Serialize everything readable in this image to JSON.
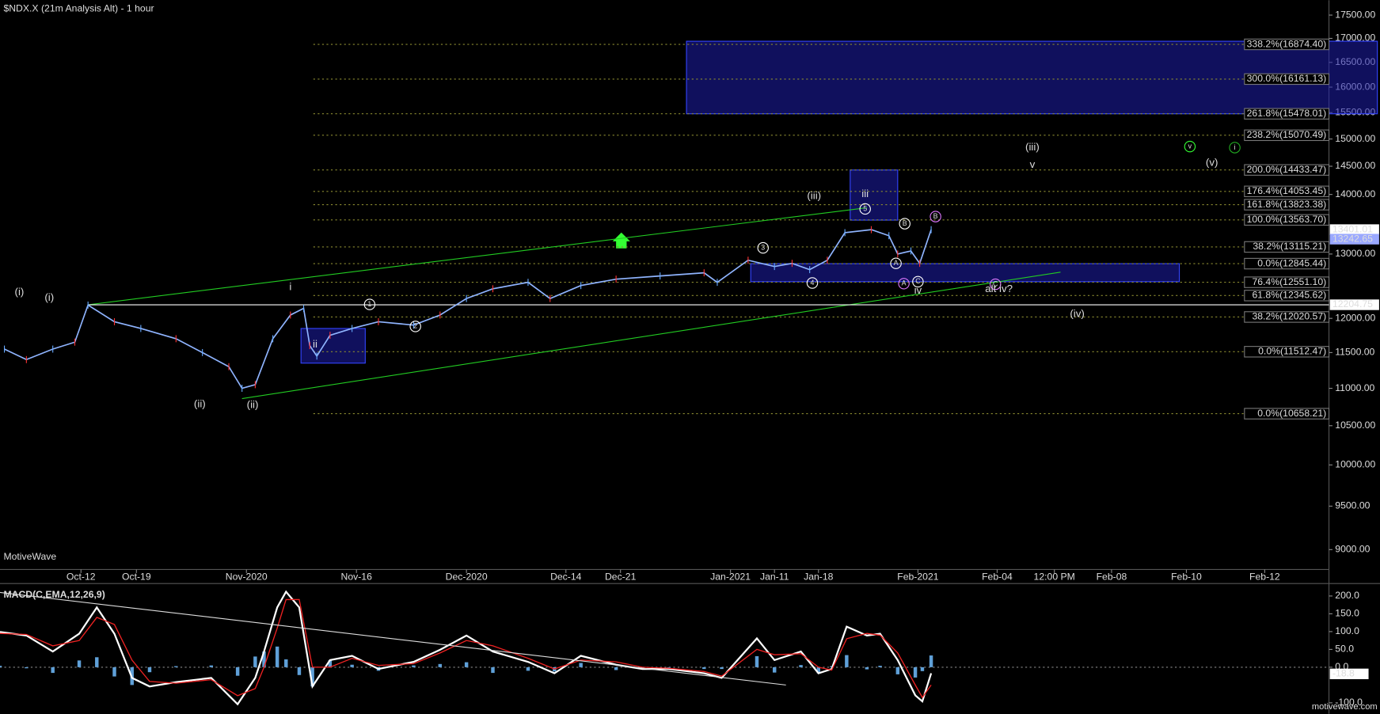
{
  "chart_data": [
    {
      "type": "line",
      "title": "$NDX.X (21m Analysis Alt) - 1 hour",
      "watermark": "MotiveWave",
      "log": true,
      "xlim": [
        0,
        151
      ],
      "ylim": [
        8780,
        17730
      ],
      "xticks": [
        {
          "value": 9.2,
          "label": "Oct-12"
        },
        {
          "value": 15.5,
          "label": "Oct-19"
        },
        {
          "value": 28,
          "label": "Nov-2020"
        },
        {
          "value": 40.5,
          "label": "Nov-16"
        },
        {
          "value": 53,
          "label": "Dec-2020"
        },
        {
          "value": 64.3,
          "label": "Dec-14"
        },
        {
          "value": 70.5,
          "label": "Dec-21"
        },
        {
          "value": 83,
          "label": "Jan-2021"
        },
        {
          "value": 88,
          "label": "Jan-11"
        },
        {
          "value": 93,
          "label": "Jan-18"
        },
        {
          "value": 104.3,
          "label": "Feb-2021"
        },
        {
          "value": 113.3,
          "label": "Feb-04"
        },
        {
          "value": 119.8,
          "label": "12:00 PM"
        },
        {
          "value": 126.3,
          "label": "Feb-08"
        },
        {
          "value": 134.8,
          "label": "Feb-10"
        },
        {
          "value": 143.7,
          "label": "Feb-12"
        }
      ],
      "yticks": [
        {
          "value": 17500,
          "label": "17500.00"
        },
        {
          "value": 17000,
          "label": "17000.00"
        },
        {
          "value": 16500,
          "label": "16500.00"
        },
        {
          "value": 16000,
          "label": "16000.00"
        },
        {
          "value": 15500,
          "label": "15500.00"
        },
        {
          "value": 15000,
          "label": "15000.00"
        },
        {
          "value": 14500,
          "label": "14500.00"
        },
        {
          "value": 14000,
          "label": "14000.00"
        },
        {
          "value": 13000,
          "label": "13000.00"
        },
        {
          "value": 12000,
          "label": "12000.00"
        },
        {
          "value": 11500,
          "label": "11500.00"
        },
        {
          "value": 11000,
          "label": "11000.00"
        },
        {
          "value": 10500,
          "label": "10500.00"
        },
        {
          "value": 10000,
          "label": "10000.00"
        },
        {
          "value": 9500,
          "label": "9500.00"
        },
        {
          "value": 9000,
          "label": "9000.00"
        }
      ],
      "series": [
        {
          "color": "#8fb4ff",
          "x": [
            0.5,
            3,
            6,
            8.5,
            10,
            13,
            16,
            20,
            23,
            26,
            27.5,
            29,
            31,
            33,
            34.5,
            35.2,
            36,
            37.5,
            40,
            43,
            47,
            50,
            53,
            56,
            60,
            62.5,
            66,
            70,
            75,
            80,
            81.5,
            85,
            88,
            90,
            92,
            94,
            96,
            99,
            101,
            102,
            103.5,
            104.5,
            105.8
          ],
          "values": [
            11550,
            11400,
            11550,
            11650,
            12200,
            11950,
            11850,
            11700,
            11500,
            11300,
            11000,
            11050,
            11700,
            12050,
            12150,
            11600,
            11450,
            11750,
            11850,
            11950,
            11900,
            12050,
            12300,
            12450,
            12550,
            12300,
            12500,
            12600,
            12650,
            12700,
            12550,
            12900,
            12800,
            12850,
            12750,
            12900,
            13350,
            13400,
            13300,
            13000,
            13050,
            12850,
            13400
          ]
        }
      ],
      "zones": [
        {
          "x": [
            78,
            156.5
          ],
          "y": [
            15478,
            16940
          ]
        },
        {
          "x": [
            96.6,
            102
          ],
          "y": [
            13560,
            14433
          ]
        },
        {
          "x": [
            85.3,
            134
          ],
          "y": [
            12560,
            12845
          ]
        },
        {
          "x": [
            34.2,
            41.5
          ],
          "y": [
            11350,
            11850
          ]
        }
      ],
      "trend_lines": [
        {
          "color": "#22cc22",
          "x": [
            10,
            98.5
          ],
          "y": [
            12204.75,
            13770
          ]
        },
        {
          "color": "#22cc22",
          "x": [
            27.5,
            120.5
          ],
          "y": [
            10860,
            12710
          ]
        },
        {
          "color": "#ffffff",
          "x": [
            10,
            151
          ],
          "y": [
            12204.75,
            12204.75
          ]
        }
      ],
      "fib_levels": [
        {
          "label": "338.2%(16874.40)",
          "value": 16874.4
        },
        {
          "label": "300.0%(16161.13)",
          "value": 16161.13
        },
        {
          "label": "261.8%(15478.01)",
          "value": 15478.01
        },
        {
          "label": "238.2%(15070.49)",
          "value": 15070.49
        },
        {
          "label": "200.0%(14433.47)",
          "value": 14433.47
        },
        {
          "label": "176.4%(14053.45)",
          "value": 14053.45
        },
        {
          "label": "161.8%(13823.38)",
          "value": 13823.38
        },
        {
          "label": "100.0%(13563.70)",
          "value": 13563.7
        },
        {
          "label": "38.2%(13115.21)",
          "value": 13115.21
        },
        {
          "label": "0.0%(12845.44)",
          "value": 12845.44
        },
        {
          "label": "76.4%(12551.10)",
          "value": 12551.1
        },
        {
          "label": "61.8%(12345.62)",
          "value": 12345.62
        },
        {
          "label": "38.2%(12020.57)",
          "value": 12020.57
        },
        {
          "label": "0.0%(11512.47)",
          "value": 11512.47
        },
        {
          "label": "0.0%(10658.21)",
          "value": 10658.21
        }
      ],
      "price_markers": [
        {
          "label": "13401.01",
          "value": 13401.01,
          "color": "#ffffff"
        },
        {
          "label": "13242.65",
          "value": 13242.65,
          "color": "#9aa8ff"
        },
        {
          "label": "12204.75",
          "value": 12204.75,
          "color": "#ffffff"
        }
      ],
      "annotations": [
        {
          "text": "(i)",
          "x": 2.2,
          "y": 12390,
          "color": "#ffffff"
        },
        {
          "text": "(i)",
          "x": 5.6,
          "y": 12310,
          "color": "#33ff33"
        },
        {
          "text": "(ii)",
          "x": 22.7,
          "y": 10780,
          "color": "#33ff33"
        },
        {
          "text": "(ii)",
          "x": 28.7,
          "y": 10770,
          "color": "#ffffff"
        },
        {
          "text": "i",
          "x": 33,
          "y": 12470,
          "color": "#ffffff"
        },
        {
          "text": "ii",
          "x": 35.8,
          "y": 11610,
          "color": "#ffffff"
        },
        {
          "text": "1",
          "x": 42,
          "y": 12210,
          "color": "#ffffff",
          "circle": true
        },
        {
          "text": "2",
          "x": 47.2,
          "y": 11880,
          "color": "#ffffff",
          "circle": true
        },
        {
          "text": "3",
          "x": 86.7,
          "y": 13100,
          "color": "#ffffff",
          "circle": true
        },
        {
          "text": "4",
          "x": 92.3,
          "y": 12540,
          "color": "#ffffff",
          "circle": true
        },
        {
          "text": "5",
          "x": 98.3,
          "y": 13750,
          "color": "#ffffff",
          "circle": true
        },
        {
          "text": "(iii)",
          "x": 92.5,
          "y": 13970,
          "color": "#33ff33"
        },
        {
          "text": "iii",
          "x": 98.3,
          "y": 14000,
          "color": "#ffffff"
        },
        {
          "text": "A",
          "x": 101.8,
          "y": 12850,
          "color": "#ffffff",
          "circle": true
        },
        {
          "text": "B",
          "x": 102.8,
          "y": 13500,
          "color": "#ffffff",
          "circle": true
        },
        {
          "text": "C",
          "x": 104.3,
          "y": 12560,
          "color": "#ffffff",
          "circle": true
        },
        {
          "text": "iv",
          "x": 104.3,
          "y": 12420,
          "color": "#ffffff"
        },
        {
          "text": "A",
          "x": 102.7,
          "y": 12530,
          "color": "#dd77ff",
          "circle": true
        },
        {
          "text": "B",
          "x": 106.3,
          "y": 13620,
          "color": "#dd77ff",
          "circle": true
        },
        {
          "text": "C",
          "x": 113.1,
          "y": 12520,
          "color": "#dd77ff",
          "circle": true
        },
        {
          "text": "alt iv?",
          "x": 113.5,
          "y": 12440,
          "color": "#dd77ff"
        },
        {
          "text": "(iii)",
          "x": 117.3,
          "y": 14840,
          "color": "#ffffff"
        },
        {
          "text": "v",
          "x": 117.3,
          "y": 14520,
          "color": "#ffffff"
        },
        {
          "text": "(iv)",
          "x": 122.4,
          "y": 12060,
          "color": "#33ff33"
        },
        {
          "text": "v",
          "x": 135.2,
          "y": 14860,
          "color": "#33ff33",
          "circle": true
        },
        {
          "text": "(v)",
          "x": 137.7,
          "y": 14560,
          "color": "#33ff33"
        },
        {
          "text": "i",
          "x": 140.3,
          "y": 14840,
          "color": "#22aa22",
          "circle": true
        }
      ]
    },
    {
      "type": "macd",
      "title": "MACD(C,EMA,12,26,9)",
      "footer": "motivewave.com",
      "xlim": [
        0,
        151
      ],
      "ylim": [
        -121,
        225
      ],
      "yticks": [
        {
          "value": 200,
          "label": "200.0"
        },
        {
          "value": 150,
          "label": "150.0"
        },
        {
          "value": 100,
          "label": "100.0"
        },
        {
          "value": 50,
          "label": "50.0"
        },
        {
          "value": 0,
          "label": "0.0"
        },
        {
          "value": -100,
          "label": "-100.0"
        }
      ],
      "last_value": {
        "value": -18.8,
        "label": "-18.8"
      },
      "x": [
        0,
        3,
        6,
        9,
        11,
        13,
        15,
        17,
        20,
        24,
        27,
        29,
        30,
        31.5,
        32.5,
        34,
        35.5,
        37.5,
        40,
        43,
        47,
        50,
        53,
        56,
        60,
        63,
        66,
        70,
        73,
        76,
        80,
        82,
        86,
        88,
        91,
        93,
        94.5,
        96.2,
        98.5,
        100,
        102,
        104,
        104.8,
        105.8
      ],
      "series": [
        {
          "color": "#ffffff",
          "values": [
            99,
            89,
            44,
            94,
            168,
            94,
            -30,
            -54,
            -42,
            -30,
            -104,
            -30,
            44,
            168,
            212,
            168,
            -54,
            20,
            32,
            -5,
            15,
            49,
            89,
            44,
            15,
            -17,
            32,
            7,
            -5,
            -5,
            -17,
            -30,
            81,
            20,
            44,
            -17,
            -5,
            114,
            89,
            94,
            20,
            -79,
            -96,
            -17
          ]
        },
        {
          "color": "#ee2222",
          "values": [
            95,
            92,
            60,
            75,
            140,
            120,
            20,
            -40,
            -45,
            -35,
            -80,
            -60,
            0,
            110,
            190,
            190,
            0,
            0,
            25,
            5,
            10,
            40,
            75,
            60,
            25,
            -5,
            20,
            15,
            0,
            -3,
            -12,
            -25,
            50,
            35,
            38,
            0,
            -8,
            80,
            95,
            90,
            40,
            -50,
            -85,
            -50
          ]
        }
      ],
      "histogram": {
        "color": "#5fa0d8",
        "values": [
          4,
          -3,
          -16,
          19,
          28,
          -26,
          -50,
          -14,
          3,
          5,
          -24,
          30,
          44,
          58,
          22,
          -22,
          -54,
          20,
          7,
          -10,
          5,
          9,
          14,
          -16,
          -10,
          -12,
          12,
          -8,
          -5,
          -2,
          -5,
          -5,
          31,
          -15,
          6,
          -17,
          3,
          34,
          -6,
          4,
          -20,
          -29,
          -11,
          33
        ]
      },
      "trend_line": {
        "color": "#dddddd",
        "x": [
          0,
          89.3
        ],
        "y": [
          210,
          -50
        ]
      }
    }
  ]
}
